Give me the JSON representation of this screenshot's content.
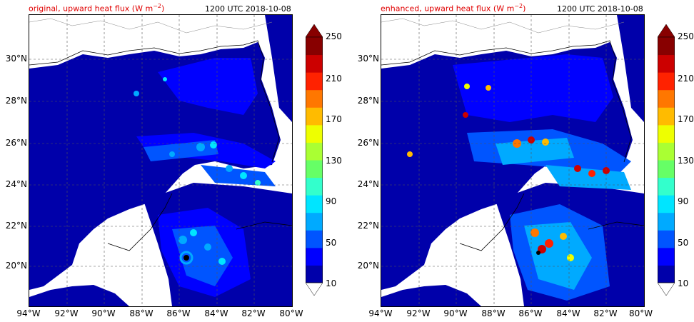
{
  "colorbar": {
    "levels": [
      "10",
      "50",
      "90",
      "130",
      "170",
      "210",
      "250"
    ],
    "colors": [
      "#0000aa",
      "#0000ff",
      "#0055ff",
      "#00aaff",
      "#00e5ff",
      "#33ffcc",
      "#66ff66",
      "#aaff33",
      "#eeff00",
      "#ffbb00",
      "#ff7700",
      "#ff2200",
      "#cc0000",
      "#880000"
    ]
  },
  "axes": {
    "lat_labels": [
      "30°N",
      "28°N",
      "26°N",
      "24°N",
      "22°N",
      "20°N"
    ],
    "lon_labels": [
      "94°W",
      "92°W",
      "90°W",
      "88°W",
      "86°W",
      "84°W",
      "82°W",
      "80°W"
    ]
  },
  "panels": [
    {
      "title": "original, upward heat flux (W m",
      "title_sup": "−2",
      "title_close": ")",
      "time": "1200 UTC 2018-10-08"
    },
    {
      "title": "enhanced, upward heat flux (W m",
      "title_sup": "−2",
      "title_close": ")",
      "time": "1200 UTC 2018-10-08"
    }
  ]
}
